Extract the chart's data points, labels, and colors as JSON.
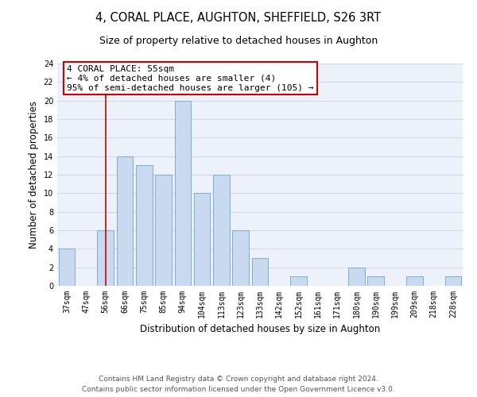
{
  "title": "4, CORAL PLACE, AUGHTON, SHEFFIELD, S26 3RT",
  "subtitle": "Size of property relative to detached houses in Aughton",
  "xlabel": "Distribution of detached houses by size in Aughton",
  "ylabel": "Number of detached properties",
  "bar_labels": [
    "37sqm",
    "47sqm",
    "56sqm",
    "66sqm",
    "75sqm",
    "85sqm",
    "94sqm",
    "104sqm",
    "113sqm",
    "123sqm",
    "133sqm",
    "142sqm",
    "152sqm",
    "161sqm",
    "171sqm",
    "180sqm",
    "190sqm",
    "199sqm",
    "209sqm",
    "218sqm",
    "228sqm"
  ],
  "bar_values": [
    4,
    0,
    6,
    14,
    13,
    12,
    20,
    10,
    12,
    6,
    3,
    0,
    1,
    0,
    0,
    2,
    1,
    0,
    1,
    0,
    1
  ],
  "bar_color": "#c9d9f0",
  "bar_edge_color": "#7bafd4",
  "vline_x_index": 2,
  "vline_color": "#cc0000",
  "annotation_line1": "4 CORAL PLACE: 55sqm",
  "annotation_line2": "← 4% of detached houses are smaller (4)",
  "annotation_line3": "95% of semi-detached houses are larger (105) →",
  "annotation_box_color": "#ffffff",
  "annotation_box_edge_color": "#cc0000",
  "ylim": [
    0,
    24
  ],
  "yticks": [
    0,
    2,
    4,
    6,
    8,
    10,
    12,
    14,
    16,
    18,
    20,
    22,
    24
  ],
  "grid_color": "#d0d8e8",
  "background_color": "#edf2fa",
  "footer_text": "Contains HM Land Registry data © Crown copyright and database right 2024.\nContains public sector information licensed under the Open Government Licence v3.0.",
  "title_fontsize": 10.5,
  "subtitle_fontsize": 9,
  "xlabel_fontsize": 8.5,
  "ylabel_fontsize": 8.5,
  "tick_fontsize": 7,
  "annotation_fontsize": 8,
  "footer_fontsize": 6.5
}
